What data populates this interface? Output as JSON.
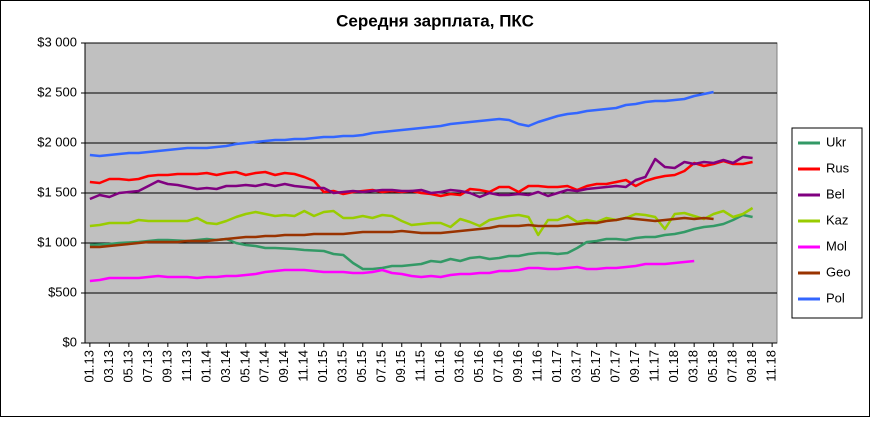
{
  "chart_data": {
    "type": "line",
    "title": "Середня зарплата, ПКС",
    "categories": [
      "01.13",
      null,
      "03.13",
      null,
      "05.13",
      null,
      "07.13",
      null,
      "09.13",
      null,
      "11.13",
      null,
      "01.14",
      null,
      "03.14",
      null,
      "05.14",
      null,
      "07.14",
      null,
      "09.14",
      null,
      "11.14",
      null,
      "01.15",
      null,
      "03.15",
      null,
      "05.15",
      null,
      "07.15",
      null,
      "09.15",
      null,
      "11.15",
      null,
      "01.16",
      null,
      "03.16",
      null,
      "05.16",
      null,
      "07.16",
      null,
      "09.16",
      null,
      "11.16",
      null,
      "01.17",
      null,
      "03.17",
      null,
      "05.17",
      null,
      "07.17",
      null,
      "09.17",
      null,
      "11.17",
      null,
      "01.18",
      null,
      "03.18",
      null,
      "05.18",
      null,
      "07.18",
      null,
      "09.18",
      null,
      "11.18"
    ],
    "series": [
      {
        "name": "Ukr",
        "color": "#339966",
        "values": [
          980,
          985,
          990,
          1000,
          1005,
          1010,
          1020,
          1030,
          1030,
          1025,
          1020,
          1030,
          1040,
          1030,
          1040,
          1000,
          980,
          970,
          950,
          950,
          945,
          940,
          930,
          925,
          920,
          890,
          880,
          800,
          740,
          740,
          750,
          770,
          770,
          780,
          790,
          820,
          810,
          840,
          820,
          850,
          860,
          840,
          850,
          870,
          870,
          890,
          900,
          900,
          890,
          900,
          950,
          1010,
          1020,
          1040,
          1040,
          1030,
          1050,
          1060,
          1060,
          1080,
          1090,
          1110,
          1140,
          1160,
          1170,
          1190,
          1230,
          1280,
          1260,
          null,
          null
        ]
      },
      {
        "name": "Rus",
        "color": "#ff0000",
        "values": [
          1610,
          1600,
          1640,
          1640,
          1630,
          1640,
          1670,
          1680,
          1680,
          1690,
          1690,
          1690,
          1700,
          1680,
          1700,
          1710,
          1680,
          1700,
          1710,
          1680,
          1700,
          1690,
          1660,
          1620,
          1510,
          1520,
          1490,
          1510,
          1520,
          1530,
          1510,
          1520,
          1510,
          1520,
          1500,
          1490,
          1470,
          1490,
          1480,
          1540,
          1530,
          1510,
          1560,
          1560,
          1510,
          1570,
          1570,
          1560,
          1560,
          1570,
          1530,
          1570,
          1590,
          1590,
          1610,
          1630,
          1570,
          1620,
          1650,
          1670,
          1680,
          1720,
          1800,
          1770,
          1790,
          1820,
          1790,
          1790,
          1810,
          null,
          null
        ]
      },
      {
        "name": "Bel",
        "color": "#800080",
        "values": [
          1440,
          1480,
          1460,
          1500,
          1510,
          1520,
          1570,
          1620,
          1590,
          1580,
          1560,
          1540,
          1550,
          1540,
          1570,
          1570,
          1580,
          1570,
          1590,
          1570,
          1590,
          1570,
          1560,
          1550,
          1550,
          1500,
          1510,
          1520,
          1510,
          1520,
          1530,
          1530,
          1520,
          1520,
          1530,
          1500,
          1510,
          1530,
          1520,
          1500,
          1460,
          1500,
          1480,
          1480,
          1490,
          1480,
          1510,
          1470,
          1500,
          1530,
          1520,
          1540,
          1550,
          1560,
          1570,
          1560,
          1630,
          1660,
          1840,
          1760,
          1750,
          1810,
          1790,
          1810,
          1800,
          1830,
          1800,
          1860,
          1850,
          null,
          null
        ]
      },
      {
        "name": "Kaz",
        "color": "#99cc00",
        "values": [
          1170,
          1180,
          1200,
          1200,
          1200,
          1230,
          1220,
          1220,
          1220,
          1220,
          1220,
          1250,
          1200,
          1190,
          1220,
          1260,
          1290,
          1310,
          1290,
          1270,
          1280,
          1270,
          1320,
          1270,
          1310,
          1320,
          1250,
          1250,
          1270,
          1250,
          1280,
          1270,
          1220,
          1180,
          1190,
          1200,
          1200,
          1160,
          1240,
          1210,
          1170,
          1230,
          1250,
          1270,
          1280,
          1260,
          1080,
          1230,
          1230,
          1270,
          1210,
          1230,
          1210,
          1250,
          1230,
          1250,
          1290,
          1280,
          1260,
          1140,
          1290,
          1300,
          1270,
          1240,
          1290,
          1320,
          1260,
          1290,
          1350,
          null,
          null
        ]
      },
      {
        "name": "Mol",
        "color": "#ff00ff",
        "values": [
          620,
          630,
          650,
          650,
          650,
          650,
          660,
          670,
          660,
          660,
          660,
          650,
          660,
          660,
          670,
          670,
          680,
          690,
          710,
          720,
          730,
          730,
          730,
          720,
          710,
          710,
          710,
          700,
          700,
          710,
          730,
          700,
          690,
          670,
          660,
          670,
          660,
          680,
          690,
          690,
          700,
          700,
          720,
          720,
          730,
          750,
          750,
          740,
          740,
          750,
          760,
          740,
          740,
          750,
          750,
          760,
          770,
          790,
          790,
          790,
          800,
          810,
          820,
          null,
          null,
          null,
          null,
          null,
          null,
          null,
          null
        ]
      },
      {
        "name": "Geo",
        "color": "#993300",
        "values": [
          960,
          960,
          970,
          980,
          990,
          1000,
          1010,
          1010,
          1010,
          1010,
          1020,
          1020,
          1020,
          1030,
          1040,
          1050,
          1060,
          1060,
          1070,
          1070,
          1080,
          1080,
          1080,
          1090,
          1090,
          1090,
          1090,
          1100,
          1110,
          1110,
          1110,
          1110,
          1120,
          1110,
          1100,
          1100,
          1100,
          1110,
          1120,
          1130,
          1140,
          1150,
          1170,
          1170,
          1170,
          1180,
          1170,
          1170,
          1170,
          1180,
          1190,
          1200,
          1200,
          1220,
          1230,
          1250,
          1240,
          1230,
          1220,
          1230,
          1240,
          1250,
          1240,
          1250,
          1240,
          null,
          null,
          null,
          null,
          null,
          null
        ]
      },
      {
        "name": "Pol",
        "color": "#3366ff",
        "values": [
          1880,
          1870,
          1880,
          1890,
          1900,
          1900,
          1910,
          1920,
          1930,
          1940,
          1950,
          1950,
          1950,
          1960,
          1970,
          1990,
          2000,
          2010,
          2020,
          2030,
          2030,
          2040,
          2040,
          2050,
          2060,
          2060,
          2070,
          2070,
          2080,
          2100,
          2110,
          2120,
          2130,
          2140,
          2150,
          2160,
          2170,
          2190,
          2200,
          2210,
          2220,
          2230,
          2240,
          2230,
          2190,
          2170,
          2210,
          2240,
          2270,
          2290,
          2300,
          2320,
          2330,
          2340,
          2350,
          2380,
          2390,
          2410,
          2420,
          2420,
          2430,
          2440,
          2470,
          2490,
          2510,
          null,
          null,
          null,
          null,
          null,
          null
        ]
      }
    ],
    "ylim": [
      0,
      3000
    ],
    "yticks": [
      {
        "value": 0,
        "label": "$0"
      },
      {
        "value": 500,
        "label": "$500"
      },
      {
        "value": 1000,
        "label": "$1 000"
      },
      {
        "value": 1500,
        "label": "$1 500"
      },
      {
        "value": 2000,
        "label": "$2 000"
      },
      {
        "value": 2500,
        "label": "$2 500"
      },
      {
        "value": 3000,
        "label": "$3 000"
      }
    ],
    "grid": true,
    "legend": "right"
  }
}
